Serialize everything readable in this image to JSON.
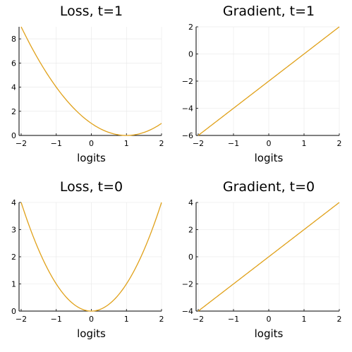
{
  "chart_data": [
    {
      "type": "line",
      "title": "Loss, t=1",
      "xlabel": "logits",
      "xlim": [
        -2,
        2
      ],
      "ylim": [
        0,
        9
      ],
      "xticks": [
        -2,
        -1,
        0,
        1,
        2
      ],
      "yticks": [
        0,
        2,
        4,
        6,
        8
      ],
      "grid": true,
      "series": [
        {
          "x": [
            -2,
            -1.5,
            -1,
            -0.5,
            0,
            0.5,
            1,
            1.5,
            2
          ],
          "y": [
            9,
            6.25,
            4,
            2.25,
            1,
            0.25,
            0,
            0.25,
            1
          ]
        }
      ],
      "color": "#e0a11a"
    },
    {
      "type": "line",
      "title": "Gradient, t=1",
      "xlabel": "logits",
      "xlim": [
        -2,
        2
      ],
      "ylim": [
        -6,
        2
      ],
      "xticks": [
        -2,
        -1,
        0,
        1,
        2
      ],
      "yticks": [
        -6,
        -4,
        -2,
        0,
        2
      ],
      "grid": true,
      "series": [
        {
          "x": [
            -2,
            -1,
            0,
            1,
            2
          ],
          "y": [
            -6,
            -4,
            -2,
            0,
            2
          ]
        }
      ],
      "color": "#e0a11a"
    },
    {
      "type": "line",
      "title": "Loss, t=0",
      "xlabel": "logits",
      "xlim": [
        -2,
        2
      ],
      "ylim": [
        0,
        4
      ],
      "xticks": [
        -2,
        -1,
        0,
        1,
        2
      ],
      "yticks": [
        0,
        1,
        2,
        3,
        4
      ],
      "grid": true,
      "series": [
        {
          "x": [
            -2,
            -1.5,
            -1,
            -0.5,
            0,
            0.5,
            1,
            1.5,
            2
          ],
          "y": [
            4,
            2.25,
            1,
            0.25,
            0,
            0.25,
            1,
            2.25,
            4
          ]
        }
      ],
      "color": "#e0a11a"
    },
    {
      "type": "line",
      "title": "Gradient, t=0",
      "xlabel": "logits",
      "xlim": [
        -2,
        2
      ],
      "ylim": [
        -4,
        4
      ],
      "xticks": [
        -2,
        -1,
        0,
        1,
        2
      ],
      "yticks": [
        -4,
        -2,
        0,
        2,
        4
      ],
      "grid": true,
      "series": [
        {
          "x": [
            -2,
            -1,
            0,
            1,
            2
          ],
          "y": [
            -4,
            -2,
            0,
            2,
            4
          ]
        }
      ],
      "color": "#e0a11a"
    }
  ]
}
